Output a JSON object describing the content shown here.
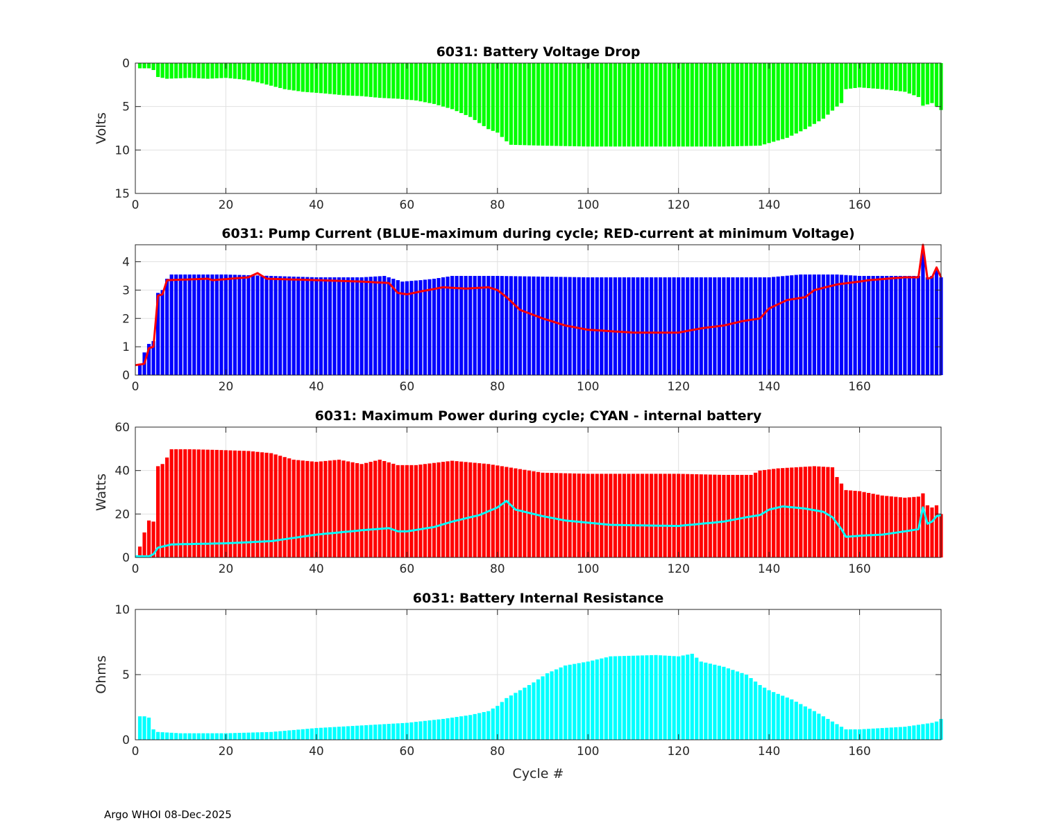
{
  "figure_footer": "Argo WHOI 08-Dec-2025",
  "colors": {
    "voltage": "#00ff00",
    "pump_max": "#0000ff",
    "pump_min": "#ff0000",
    "power": "#ff0000",
    "internal": "#00ffff",
    "grid": "#e0e0e0",
    "axis": "#262626"
  },
  "chart_data": [
    {
      "id": "voltage",
      "type": "bar",
      "title": "6031: Battery Voltage Drop",
      "xlabel": "",
      "ylabel": "Volts",
      "xlim": [
        0,
        178
      ],
      "ylim": [
        0,
        15
      ],
      "y_reversed": true,
      "xticks": [
        0,
        20,
        40,
        60,
        80,
        100,
        120,
        140,
        160
      ],
      "yticks": [
        0,
        5,
        10,
        15
      ],
      "grid": true,
      "anchors": [
        [
          1,
          0.6
        ],
        [
          3,
          0.6
        ],
        [
          4,
          0.8
        ],
        [
          5,
          1.6
        ],
        [
          7,
          1.8
        ],
        [
          12,
          1.7
        ],
        [
          16,
          1.8
        ],
        [
          20,
          1.7
        ],
        [
          24,
          1.9
        ],
        [
          27,
          2.2
        ],
        [
          30,
          2.6
        ],
        [
          33,
          3.0
        ],
        [
          37,
          3.3
        ],
        [
          42,
          3.5
        ],
        [
          46,
          3.7
        ],
        [
          50,
          3.8
        ],
        [
          54,
          4.0
        ],
        [
          58,
          4.1
        ],
        [
          62,
          4.3
        ],
        [
          66,
          4.7
        ],
        [
          70,
          5.3
        ],
        [
          74,
          6.2
        ],
        [
          78,
          7.6
        ],
        [
          80,
          8.0
        ],
        [
          82,
          9.0
        ],
        [
          83,
          9.4
        ],
        [
          90,
          9.5
        ],
        [
          100,
          9.6
        ],
        [
          120,
          9.6
        ],
        [
          130,
          9.6
        ],
        [
          138,
          9.5
        ],
        [
          140,
          9.2
        ],
        [
          144,
          8.6
        ],
        [
          148,
          7.6
        ],
        [
          152,
          6.4
        ],
        [
          155,
          5.0
        ],
        [
          156,
          4.6
        ],
        [
          157,
          3.0
        ],
        [
          160,
          2.8
        ],
        [
          165,
          3.0
        ],
        [
          170,
          3.3
        ],
        [
          173,
          3.9
        ],
        [
          174,
          4.9
        ],
        [
          176,
          4.6
        ],
        [
          178,
          5.4
        ]
      ]
    },
    {
      "id": "pump",
      "type": "bar",
      "title": "6031: Pump Current (BLUE-maximum during cycle; RED-current at minimum Voltage)",
      "xlabel": "",
      "ylabel": "",
      "xlim": [
        0,
        178
      ],
      "ylim": [
        0,
        4.6
      ],
      "xticks": [
        0,
        20,
        40,
        60,
        80,
        100,
        120,
        140,
        160
      ],
      "yticks": [
        0,
        1,
        2,
        3,
        4
      ],
      "grid": true,
      "series": [
        {
          "name": "maximum during cycle",
          "kind": "bar",
          "anchors": [
            [
              1,
              0.4
            ],
            [
              2,
              0.8
            ],
            [
              3,
              1.1
            ],
            [
              4,
              1.2
            ],
            [
              5,
              2.9
            ],
            [
              6,
              3.0
            ],
            [
              7,
              3.4
            ],
            [
              8,
              3.55
            ],
            [
              20,
              3.55
            ],
            [
              30,
              3.5
            ],
            [
              40,
              3.45
            ],
            [
              50,
              3.45
            ],
            [
              55,
              3.5
            ],
            [
              57,
              3.4
            ],
            [
              59,
              3.3
            ],
            [
              63,
              3.35
            ],
            [
              66,
              3.4
            ],
            [
              70,
              3.5
            ],
            [
              80,
              3.5
            ],
            [
              100,
              3.45
            ],
            [
              120,
              3.45
            ],
            [
              130,
              3.45
            ],
            [
              140,
              3.45
            ],
            [
              147,
              3.55
            ],
            [
              155,
              3.55
            ],
            [
              160,
              3.5
            ],
            [
              170,
              3.5
            ],
            [
              173,
              3.5
            ],
            [
              174,
              4.4
            ],
            [
              175,
              3.45
            ],
            [
              176,
              3.5
            ],
            [
              177,
              3.7
            ],
            [
              178,
              3.45
            ]
          ]
        },
        {
          "name": "current at minimum Voltage",
          "kind": "line",
          "anchors": [
            [
              0,
              0.35
            ],
            [
              2,
              0.4
            ],
            [
              3,
              0.95
            ],
            [
              4,
              1.0
            ],
            [
              5,
              2.8
            ],
            [
              6,
              2.85
            ],
            [
              7,
              3.35
            ],
            [
              16,
              3.4
            ],
            [
              17,
              3.35
            ],
            [
              25,
              3.45
            ],
            [
              27,
              3.6
            ],
            [
              29,
              3.4
            ],
            [
              40,
              3.35
            ],
            [
              50,
              3.3
            ],
            [
              56,
              3.25
            ],
            [
              58,
              2.9
            ],
            [
              60,
              2.85
            ],
            [
              63,
              2.95
            ],
            [
              68,
              3.1
            ],
            [
              73,
              3.05
            ],
            [
              78,
              3.1
            ],
            [
              80,
              3.0
            ],
            [
              82,
              2.75
            ],
            [
              85,
              2.3
            ],
            [
              90,
              2.0
            ],
            [
              95,
              1.75
            ],
            [
              100,
              1.6
            ],
            [
              105,
              1.55
            ],
            [
              110,
              1.5
            ],
            [
              120,
              1.5
            ],
            [
              125,
              1.65
            ],
            [
              130,
              1.75
            ],
            [
              134,
              1.9
            ],
            [
              138,
              2.0
            ],
            [
              140,
              2.35
            ],
            [
              144,
              2.65
            ],
            [
              148,
              2.75
            ],
            [
              150,
              3.0
            ],
            [
              155,
              3.2
            ],
            [
              160,
              3.3
            ],
            [
              162,
              3.35
            ],
            [
              170,
              3.45
            ],
            [
              173,
              3.45
            ],
            [
              174,
              4.6
            ],
            [
              175,
              3.4
            ],
            [
              176,
              3.45
            ],
            [
              177,
              3.8
            ],
            [
              178,
              3.45
            ]
          ]
        }
      ]
    },
    {
      "id": "power",
      "type": "bar",
      "title": "6031: Maximum Power during cycle; CYAN - internal battery",
      "xlabel": "",
      "ylabel": "Watts",
      "xlim": [
        0,
        178
      ],
      "ylim": [
        0,
        60
      ],
      "xticks": [
        0,
        20,
        40,
        60,
        80,
        100,
        120,
        140,
        160
      ],
      "yticks": [
        0,
        20,
        40,
        60
      ],
      "grid": true,
      "series": [
        {
          "name": "Maximum Power",
          "kind": "bar",
          "anchors": [
            [
              1,
              5
            ],
            [
              2,
              11.5
            ],
            [
              3,
              17
            ],
            [
              4,
              16.5
            ],
            [
              5,
              42
            ],
            [
              6,
              43
            ],
            [
              7,
              46
            ],
            [
              8,
              49.8
            ],
            [
              12,
              49.8
            ],
            [
              18,
              49.5
            ],
            [
              25,
              49
            ],
            [
              30,
              48
            ],
            [
              35,
              45
            ],
            [
              40,
              44
            ],
            [
              45,
              45
            ],
            [
              50,
              43
            ],
            [
              54,
              45
            ],
            [
              58,
              42.5
            ],
            [
              62,
              42.5
            ],
            [
              66,
              43.5
            ],
            [
              70,
              44.5
            ],
            [
              78,
              43
            ],
            [
              84,
              41
            ],
            [
              90,
              39
            ],
            [
              100,
              38.5
            ],
            [
              110,
              38.5
            ],
            [
              120,
              38.5
            ],
            [
              130,
              38
            ],
            [
              136,
              38
            ],
            [
              138,
              40
            ],
            [
              142,
              41
            ],
            [
              150,
              42
            ],
            [
              154,
              41.5
            ],
            [
              155,
              37
            ],
            [
              157,
              31
            ],
            [
              160,
              30.5
            ],
            [
              165,
              28.5
            ],
            [
              170,
              27.5
            ],
            [
              173,
              28
            ],
            [
              174,
              29.5
            ],
            [
              175,
              24
            ],
            [
              176,
              23
            ],
            [
              177,
              24
            ],
            [
              178,
              20
            ]
          ]
        },
        {
          "name": "internal battery",
          "kind": "line",
          "anchors": [
            [
              0,
              0.5
            ],
            [
              3,
              0.5
            ],
            [
              4,
              1.5
            ],
            [
              5,
              4.5
            ],
            [
              7,
              5.5
            ],
            [
              8,
              6
            ],
            [
              20,
              6.5
            ],
            [
              30,
              7.5
            ],
            [
              35,
              9
            ],
            [
              40,
              10.5
            ],
            [
              45,
              11.5
            ],
            [
              50,
              12.5
            ],
            [
              56,
              13.5
            ],
            [
              58,
              12
            ],
            [
              60,
              12
            ],
            [
              66,
              14
            ],
            [
              70,
              16.5
            ],
            [
              76,
              19.5
            ],
            [
              80,
              23
            ],
            [
              82,
              26
            ],
            [
              84,
              22
            ],
            [
              90,
              19
            ],
            [
              95,
              17
            ],
            [
              100,
              16
            ],
            [
              105,
              15
            ],
            [
              110,
              14.8
            ],
            [
              120,
              14.5
            ],
            [
              125,
              15.5
            ],
            [
              130,
              16.5
            ],
            [
              135,
              18.5
            ],
            [
              138,
              19.5
            ],
            [
              140,
              22
            ],
            [
              143,
              23.5
            ],
            [
              148,
              22.5
            ],
            [
              152,
              21
            ],
            [
              154,
              18.5
            ],
            [
              156,
              13
            ],
            [
              157,
              9.5
            ],
            [
              160,
              10
            ],
            [
              165,
              10.5
            ],
            [
              170,
              12
            ],
            [
              173,
              13
            ],
            [
              174,
              23
            ],
            [
              175,
              15.5
            ],
            [
              176,
              16.5
            ],
            [
              177,
              19
            ],
            [
              178,
              19.5
            ]
          ]
        }
      ]
    },
    {
      "id": "resistance",
      "type": "bar",
      "title": "6031: Battery Internal Resistance",
      "xlabel": "Cycle #",
      "ylabel": "Ohms",
      "xlim": [
        0,
        178
      ],
      "ylim": [
        0,
        10
      ],
      "xticks": [
        0,
        20,
        40,
        60,
        80,
        100,
        120,
        140,
        160
      ],
      "yticks": [
        0,
        5,
        10
      ],
      "grid": true,
      "anchors": [
        [
          1,
          1.8
        ],
        [
          2,
          1.8
        ],
        [
          3,
          1.7
        ],
        [
          4,
          0.8
        ],
        [
          5,
          0.6
        ],
        [
          10,
          0.5
        ],
        [
          20,
          0.5
        ],
        [
          30,
          0.6
        ],
        [
          40,
          0.9
        ],
        [
          50,
          1.1
        ],
        [
          60,
          1.3
        ],
        [
          68,
          1.6
        ],
        [
          74,
          1.9
        ],
        [
          78,
          2.2
        ],
        [
          80,
          2.6
        ],
        [
          82,
          3.2
        ],
        [
          85,
          3.8
        ],
        [
          88,
          4.4
        ],
        [
          91,
          5.1
        ],
        [
          95,
          5.7
        ],
        [
          100,
          6.0
        ],
        [
          105,
          6.4
        ],
        [
          110,
          6.45
        ],
        [
          115,
          6.5
        ],
        [
          120,
          6.4
        ],
        [
          123,
          6.6
        ],
        [
          125,
          6.0
        ],
        [
          130,
          5.6
        ],
        [
          135,
          5.0
        ],
        [
          138,
          4.2
        ],
        [
          140,
          3.8
        ],
        [
          145,
          3.1
        ],
        [
          150,
          2.2
        ],
        [
          155,
          1.2
        ],
        [
          157,
          0.8
        ],
        [
          160,
          0.8
        ],
        [
          165,
          0.9
        ],
        [
          170,
          1.0
        ],
        [
          174,
          1.2
        ],
        [
          176,
          1.3
        ],
        [
          177,
          1.4
        ],
        [
          178,
          1.6
        ]
      ]
    }
  ]
}
